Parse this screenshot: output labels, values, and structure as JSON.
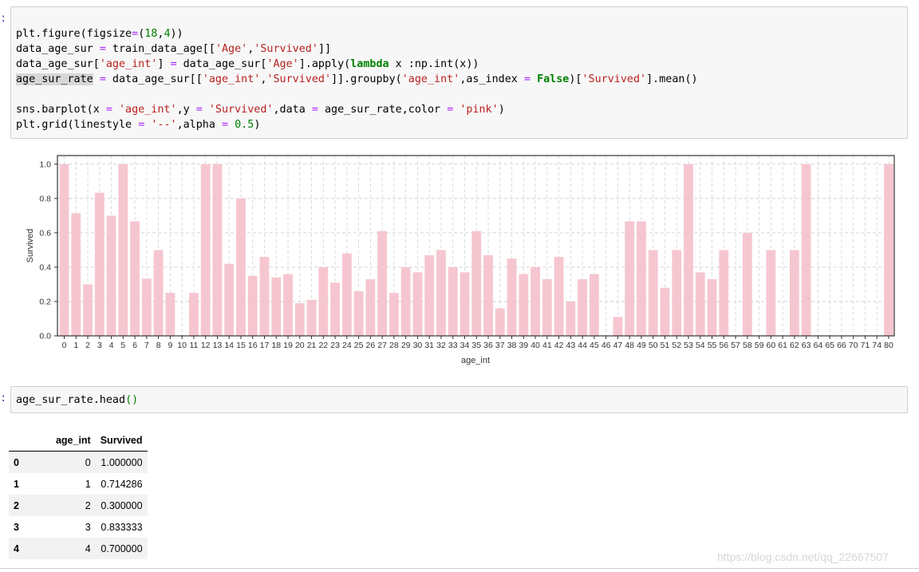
{
  "cell1": {
    "prompt": ":",
    "lines": [
      "plt.figure(figsize=(18,4))",
      "data_age_sur = train_data_age[['Age','Survived']]",
      "data_age_sur['age_int'] = data_age_sur['Age'].apply(lambda x :np.int(x))",
      "age_sur_rate = data_age_sur[['age_int','Survived']].groupby('age_int',as_index = False)['Survived'].mean()",
      "",
      "sns.barplot(x = 'age_int',y = 'Survived',data = age_sur_rate,color = 'pink')",
      "plt.grid(linestyle = '--',alpha = 0.5)"
    ]
  },
  "chart_data": {
    "type": "bar",
    "categories": [
      "0",
      "1",
      "2",
      "3",
      "4",
      "5",
      "6",
      "7",
      "8",
      "9",
      "10",
      "11",
      "12",
      "13",
      "14",
      "15",
      "16",
      "17",
      "18",
      "19",
      "20",
      "21",
      "22",
      "23",
      "24",
      "25",
      "26",
      "27",
      "28",
      "29",
      "30",
      "31",
      "32",
      "33",
      "34",
      "35",
      "36",
      "37",
      "38",
      "39",
      "40",
      "41",
      "42",
      "43",
      "44",
      "45",
      "46",
      "47",
      "48",
      "49",
      "50",
      "51",
      "52",
      "53",
      "54",
      "55",
      "56",
      "57",
      "58",
      "59",
      "60",
      "61",
      "62",
      "63",
      "64",
      "65",
      "66",
      "70",
      "71",
      "74",
      "80"
    ],
    "values": [
      1.0,
      0.714286,
      0.3,
      0.833333,
      0.7,
      1.0,
      0.667,
      0.333,
      0.5,
      0.25,
      0.0,
      0.25,
      1.0,
      1.0,
      0.42,
      0.8,
      0.35,
      0.46,
      0.34,
      0.36,
      0.19,
      0.21,
      0.4,
      0.31,
      0.48,
      0.26,
      0.33,
      0.61,
      0.25,
      0.4,
      0.37,
      0.47,
      0.5,
      0.4,
      0.37,
      0.61,
      0.47,
      0.16,
      0.45,
      0.36,
      0.4,
      0.33,
      0.46,
      0.2,
      0.33,
      0.36,
      0.0,
      0.11,
      0.667,
      0.667,
      0.5,
      0.28,
      0.5,
      1.0,
      0.37,
      0.33,
      0.5,
      0.0,
      0.6,
      0.0,
      0.5,
      0.0,
      0.5,
      1.0,
      0.0,
      0.0,
      0.0,
      0.0,
      0.0,
      0.0,
      1.0
    ],
    "xlabel": "age_int",
    "ylabel": "Survived",
    "ylim": [
      0,
      1.05
    ],
    "yticks": [
      "0.0",
      "0.2",
      "0.4",
      "0.6",
      "0.8",
      "1.0"
    ],
    "ytick_values": [
      0,
      0.2,
      0.4,
      0.6,
      0.8,
      1.0
    ],
    "bar_color": "#f6c6d0",
    "grid": true
  },
  "cell2": {
    "prompt": ":",
    "code_pre": "age_sur_rate.head",
    "code_paren": "()"
  },
  "table": {
    "headers": [
      "",
      "age_int",
      "Survived"
    ],
    "rows": [
      [
        "0",
        "0",
        "1.000000"
      ],
      [
        "1",
        "1",
        "0.714286"
      ],
      [
        "2",
        "2",
        "0.300000"
      ],
      [
        "3",
        "3",
        "0.833333"
      ],
      [
        "4",
        "4",
        "0.700000"
      ]
    ]
  },
  "watermark": "https://blog.csdn.net/qq_22667507"
}
